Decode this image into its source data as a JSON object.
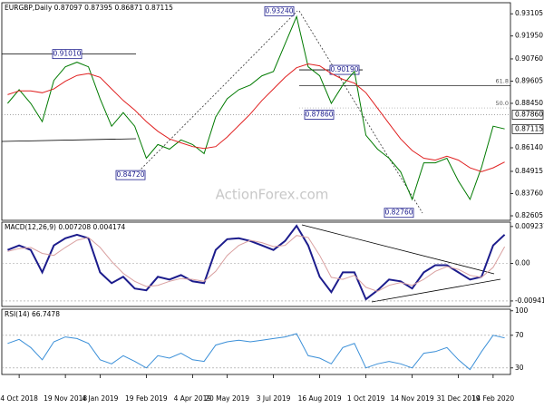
{
  "chart_data": [
    {
      "type": "line",
      "title": "EURGBP,Daily 0.87097 0.87395 0.86871 0.87115",
      "watermark": "ActionForex.com",
      "categories": [
        null,
        "4 Oct 2018",
        null,
        null,
        null,
        "19 Nov 2018",
        null,
        null,
        "4 Jan 2019",
        null,
        null,
        null,
        "19 Feb 2019",
        null,
        null,
        null,
        "4 Apr 2019",
        null,
        null,
        "20 May 2019",
        null,
        null,
        null,
        "3 Jul 2019",
        null,
        null,
        null,
        "16 Aug 2019",
        null,
        null,
        null,
        "1 Oct 2019",
        null,
        null,
        null,
        "14 Nov 2019",
        null,
        null,
        null,
        "31 Dec 2019",
        null,
        null,
        "14 Feb 2020",
        null
      ],
      "series": [
        {
          "name": "EURGBP",
          "color": "#007a00",
          "values": [
            0.8845,
            0.8916,
            0.8845,
            0.875,
            0.8964,
            0.9035,
            0.9059,
            0.9035,
            0.8869,
            0.8726,
            0.8797,
            0.8726,
            0.856,
            0.8631,
            0.8607,
            0.8655,
            0.8631,
            0.8584,
            0.8774,
            0.8869,
            0.8916,
            0.894,
            0.8988,
            0.9011,
            0.9154,
            0.9296,
            0.9035,
            0.8988,
            0.8845,
            0.894,
            0.9011,
            0.8679,
            0.8607,
            0.856,
            0.8489,
            0.8346,
            0.8536,
            0.8536,
            0.856,
            0.8441,
            0.8346,
            0.8512,
            0.8726,
            0.8712
          ]
        },
        {
          "name": "MA",
          "color": "#e02020",
          "values": [
            0.889,
            0.891,
            0.891,
            0.89,
            0.892,
            0.896,
            0.899,
            0.9,
            0.898,
            0.892,
            0.886,
            0.881,
            0.875,
            0.87,
            0.866,
            0.864,
            0.862,
            0.861,
            0.862,
            0.867,
            0.873,
            0.879,
            0.886,
            0.892,
            0.898,
            0.903,
            0.905,
            0.904,
            0.9,
            0.897,
            0.895,
            0.89,
            0.882,
            0.874,
            0.866,
            0.86,
            0.856,
            0.855,
            0.857,
            0.855,
            0.851,
            0.849,
            0.851,
            0.854
          ]
        }
      ],
      "ylim": [
        0.8237,
        0.9368
      ],
      "yticks": [
        0.93105,
        {
          "value": 0.9195,
          "label": "0.91950"
        },
        {
          "value": 0.9076,
          "label": "0.90760"
        },
        0.89605,
        {
          "value": 0.8845,
          "label": "0.88450"
        },
        {
          "value": 0.8614,
          "label": "0.86140"
        },
        0.84915,
        {
          "value": 0.8376,
          "label": "0.83760"
        },
        0.82605
      ],
      "annotations": [
        {
          "value": 0.9324,
          "label": "0.93240"
        },
        {
          "value": 0.9101,
          "label": "0.91010"
        },
        {
          "value": 0.9019,
          "label": "0.90190"
        },
        {
          "value": 0.8786,
          "label": "0.87860"
        },
        {
          "value": 0.8472,
          "label": "0.84720"
        },
        {
          "value": 0.8276,
          "label": "0.82760"
        }
      ],
      "fib_levels": [
        {
          "value": 0.8937,
          "label": "61.8"
        },
        {
          "value": 0.8821,
          "label": "50.0"
        }
      ],
      "axis_markers": [
        {
          "value": 0.8786,
          "label": "0.87860"
        },
        {
          "value": 0.87115,
          "label": "0.87115"
        }
      ]
    },
    {
      "type": "line",
      "title": "MACD(12,26,9) 0.007208 0.004174",
      "series": [
        {
          "name": "MACD",
          "color": "#1c1c8c",
          "values": [
            0.00337,
            0.00449,
            0.00337,
            -0.00225,
            0.00449,
            0.00629,
            0.00719,
            0.00629,
            -0.00225,
            -0.00494,
            -0.00337,
            -0.00629,
            -0.00674,
            -0.00337,
            -0.00404,
            -0.00292,
            -0.00449,
            -0.00494,
            0.00337,
            0.00607,
            0.00629,
            0.00562,
            0.00449,
            0.00337,
            0.00562,
            0.00944,
            0.00449,
            -0.00337,
            -0.00719,
            -0.00225,
            -0.00225,
            -0.00899,
            -0.00674,
            -0.00404,
            -0.00449,
            -0.00629,
            -0.00225,
            -0.00045,
            -0.00045,
            -0.00225,
            -0.00404,
            -0.00337,
            0.00449,
            0.007208
          ]
        },
        {
          "name": "Signal",
          "color": "#d9a0a0",
          "values": [
            0.003,
            0.0037,
            0.004,
            0.0025,
            0.002,
            0.004,
            0.0058,
            0.0065,
            0.004,
            0.0005,
            -0.0025,
            -0.0045,
            -0.0058,
            -0.0055,
            -0.0045,
            -0.0038,
            -0.004,
            -0.0045,
            -0.002,
            0.002,
            0.0045,
            0.0058,
            0.0052,
            0.0042,
            0.0045,
            0.007,
            0.0065,
            0.002,
            -0.0035,
            -0.004,
            -0.003,
            -0.006,
            -0.007,
            -0.0055,
            -0.0048,
            -0.0055,
            -0.004,
            -0.002,
            -0.0008,
            -0.0015,
            -0.003,
            -0.0035,
            -0.001,
            0.004174
          ]
        }
      ],
      "ylim": [
        -0.01079,
        0.01034
      ],
      "yticks": [
        0.009237,
        {
          "value": 0,
          "label": "0.00"
        },
        -0.009413
      ]
    },
    {
      "type": "line",
      "title": "RSI(14) 66.7478",
      "series": [
        {
          "name": "RSI",
          "color": "#3a8fd8",
          "values": [
            60,
            65,
            55,
            40,
            62,
            68,
            66,
            60,
            40,
            35,
            45,
            38,
            30,
            45,
            42,
            48,
            40,
            38,
            58,
            62,
            64,
            62,
            64,
            66,
            68,
            72,
            45,
            42,
            35,
            55,
            60,
            30,
            35,
            38,
            35,
            30,
            48,
            50,
            55,
            40,
            28,
            50,
            70,
            66.7478
          ]
        }
      ],
      "ylim": [
        22,
        102
      ],
      "yticks": [
        100,
        70,
        30
      ]
    }
  ]
}
